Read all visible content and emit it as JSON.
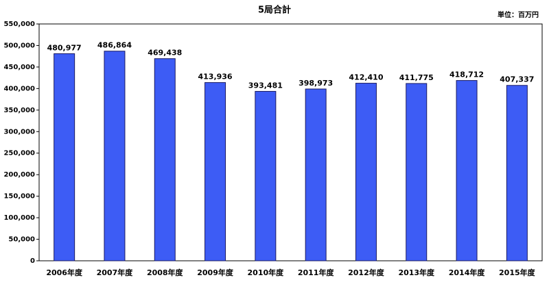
{
  "chart_data": {
    "type": "bar",
    "title": "5局合計",
    "unit_label": "単位：百万円",
    "categories": [
      "2006年度",
      "2007年度",
      "2008年度",
      "2009年度",
      "2010年度",
      "2011年度",
      "2012年度",
      "2013年度",
      "2014年度",
      "2015年度"
    ],
    "values": [
      480977,
      486864,
      469438,
      413936,
      393481,
      398973,
      412410,
      411775,
      418712,
      407337
    ],
    "value_labels": [
      "480,977",
      "486,864",
      "469,438",
      "413,936",
      "393,481",
      "398,973",
      "412,410",
      "411,775",
      "418,712",
      "407,337"
    ],
    "color": "#3d5cf5",
    "ylim": [
      0,
      550000
    ],
    "yticks": [
      0,
      {
        "value": 50000,
        "label": "50,000"
      },
      {
        "value": 100000,
        "label": "100,000"
      },
      {
        "value": 150000,
        "label": "150,000"
      },
      {
        "value": 200000,
        "label": "200,000"
      },
      {
        "value": 250000,
        "label": "250,000"
      },
      {
        "value": 300000,
        "label": "300,000"
      },
      {
        "value": 350000,
        "label": "350,000"
      },
      {
        "value": 400000,
        "label": "400,000"
      },
      {
        "value": 450000,
        "label": "450,000"
      },
      {
        "value": 500000,
        "label": "500,000"
      },
      {
        "value": 550000,
        "label": "550,000"
      }
    ],
    "grid": false
  }
}
